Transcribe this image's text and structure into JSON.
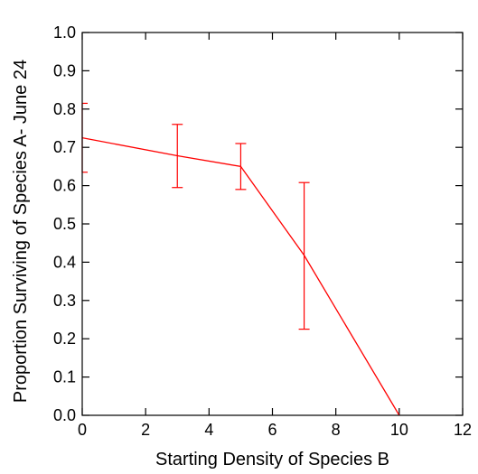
{
  "chart_data": {
    "type": "line",
    "title": "",
    "xlabel": "Starting Density of Species B",
    "ylabel": "Proportion Surviving of Species A- June 24",
    "xlim": [
      0,
      12
    ],
    "ylim": [
      0,
      1.0
    ],
    "xticks": [
      "0",
      "2",
      "4",
      "6",
      "8",
      "10",
      "12"
    ],
    "yticks": [
      "0.0",
      "0.1",
      "0.2",
      "0.3",
      "0.4",
      "0.5",
      "0.6",
      "0.7",
      "0.8",
      "0.9",
      "1.0"
    ],
    "grid": false,
    "series": [
      {
        "x": [
          0,
          3,
          5,
          7,
          10
        ],
        "y": [
          0.725,
          0.678,
          0.65,
          0.418,
          0.0
        ],
        "error_low": [
          0.635,
          0.595,
          0.59,
          0.225,
          null
        ],
        "error_high": [
          0.815,
          0.76,
          0.71,
          0.608,
          null
        ],
        "color": "#ff0000"
      }
    ]
  }
}
